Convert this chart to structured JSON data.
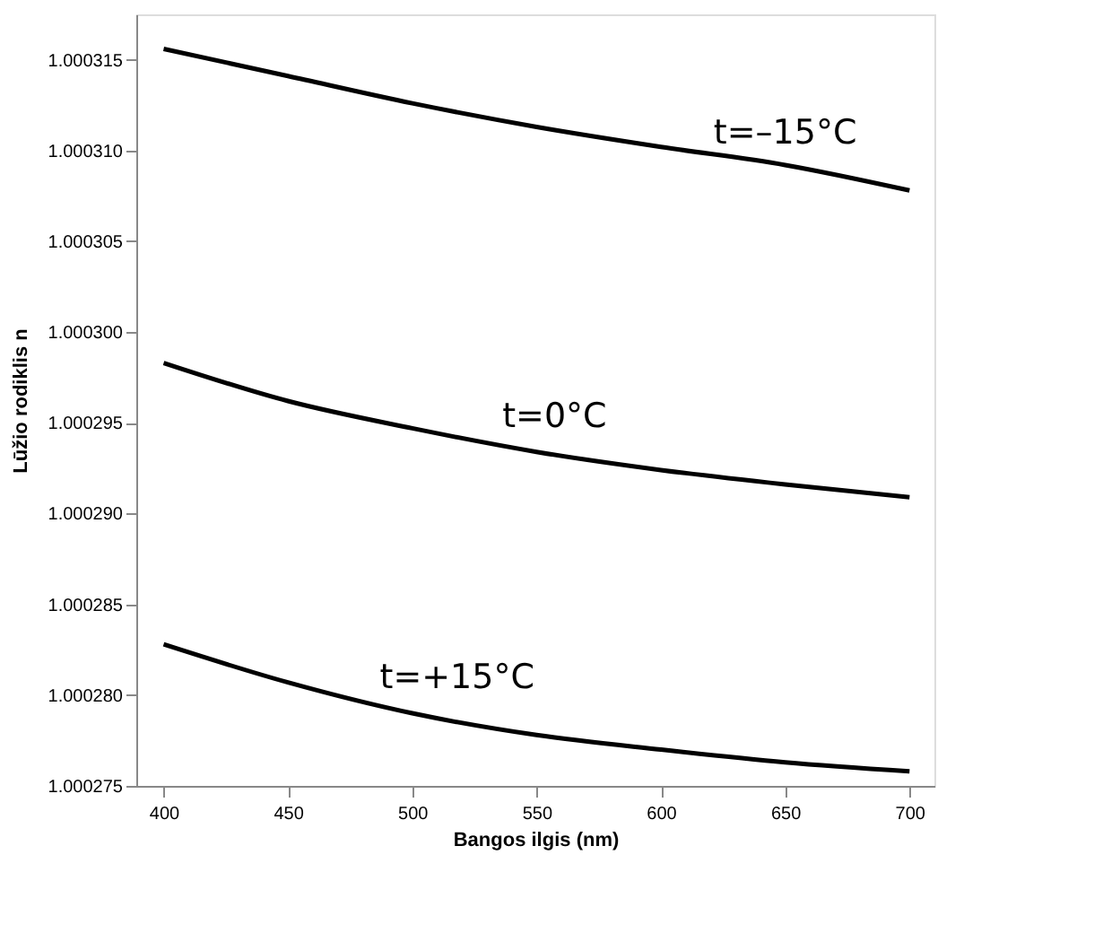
{
  "chart_data": {
    "type": "line",
    "xlabel": "Bangos ilgis (nm)",
    "ylabel": "Lūžio rodiklis n",
    "x": [
      400,
      450,
      500,
      550,
      600,
      650,
      700
    ],
    "series": [
      {
        "color": "#000000",
        "values": [
          1.0003156,
          1.0003141,
          1.0003126,
          1.0003113,
          1.0003102,
          1.0003092,
          1.0003078
        ]
      },
      {
        "color": "#000000",
        "values": [
          1.0002983,
          1.0002962,
          1.0002947,
          1.0002934,
          1.0002924,
          1.0002916,
          1.0002909
        ]
      },
      {
        "color": "#000000",
        "values": [
          1.0002828,
          1.0002807,
          1.000279,
          1.0002778,
          1.000277,
          1.0002763,
          1.0002758
        ]
      }
    ],
    "annotations": [
      "t=–15°C",
      "t=0°C",
      "t=+15°C"
    ],
    "xlim": [
      389,
      710
    ],
    "xticks": [
      400,
      450,
      500,
      550,
      600,
      650,
      700
    ],
    "ylim": [
      1.000275,
      1.0003175
    ],
    "yticks": [
      1.000275,
      {
        "value": 1.00028,
        "label": "1.000280"
      },
      1.000285,
      {
        "value": 1.00029,
        "label": "1.000290"
      },
      1.000295,
      {
        "value": 1.0003,
        "label": "1.000300"
      },
      1.000305,
      {
        "value": 1.00031,
        "label": "1.000310"
      },
      1.000315
    ],
    "grid": false,
    "legend": false,
    "marker": "none",
    "line_style": "solid"
  }
}
